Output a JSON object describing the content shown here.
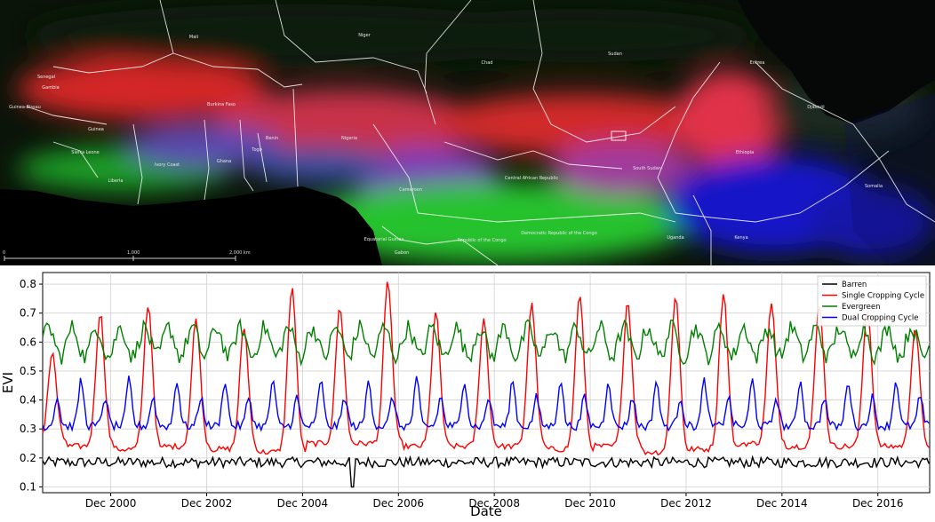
{
  "map": {
    "labels": [
      {
        "text": "Mali"
      },
      {
        "text": "Niger"
      },
      {
        "text": "Chad"
      },
      {
        "text": "Sudan"
      },
      {
        "text": "Senegal"
      },
      {
        "text": "Gambia"
      },
      {
        "text": "Guinea-Bissau"
      },
      {
        "text": "Guinea"
      },
      {
        "text": "Sierra Leone"
      },
      {
        "text": "Liberia"
      },
      {
        "text": "Ivory Coast"
      },
      {
        "text": "Ghana"
      },
      {
        "text": "Togo"
      },
      {
        "text": "Benin"
      },
      {
        "text": "Burkina Faso"
      },
      {
        "text": "Nigeria"
      },
      {
        "text": "Cameroon"
      },
      {
        "text": "Central African Republic"
      },
      {
        "text": "South Sudan"
      },
      {
        "text": "Ethiopia"
      },
      {
        "text": "Eritrea"
      },
      {
        "text": "Djibouti"
      },
      {
        "text": "Somalia"
      },
      {
        "text": "Uganda"
      },
      {
        "text": "Kenya"
      },
      {
        "text": "Equatorial Guinea"
      },
      {
        "text": "Gabon"
      },
      {
        "text": "Republic of the Congo"
      },
      {
        "text": "Democratic Republic of the Congo"
      }
    ],
    "scale": {
      "t0": "0",
      "t1": "1,000",
      "t2": "2,000 km"
    }
  },
  "chart_data": {
    "type": "line",
    "xlabel": "Date",
    "ylabel": "EVI",
    "ylim": [
      0.08,
      0.84
    ],
    "xlim": [
      1999.5,
      2018.0
    ],
    "yticks": [
      "0.1",
      "0.2",
      "0.3",
      "0.4",
      "0.5",
      "0.6",
      "0.7",
      "0.8"
    ],
    "xticks": [
      "Dec 2000",
      "Dec 2002",
      "Dec 2004",
      "Dec 2006",
      "Dec 2008",
      "Dec 2010",
      "Dec 2012",
      "Dec 2014",
      "Dec 2016"
    ],
    "xtick_values": [
      2000.92,
      2002.92,
      2004.92,
      2006.92,
      2008.92,
      2010.92,
      2012.92,
      2014.92,
      2016.92
    ],
    "grid": true,
    "legend_position": "top-right",
    "time_step_days": 16,
    "series": [
      {
        "name": "Barren",
        "color": "#000000",
        "base": 0.185,
        "amp": 0.005,
        "noise": 0.018
      },
      {
        "name": "Single Cropping Cycle",
        "color": "#ff0000",
        "peaks": [
          0.56,
          0.7,
          0.73,
          0.68,
          0.65,
          0.79,
          0.72,
          0.81,
          0.7,
          0.68,
          0.73,
          0.76,
          0.74,
          0.76,
          0.77,
          0.73,
          0.73,
          0.72,
          0.65
        ],
        "troughs": [
          0.26,
          0.24,
          0.23,
          0.24,
          0.23,
          0.22,
          0.25,
          0.25,
          0.24,
          0.24,
          0.24,
          0.23,
          0.24,
          0.22,
          0.23,
          0.25,
          0.24,
          0.24,
          0.24
        ]
      },
      {
        "name": "Evergreen",
        "color": "#008000",
        "base": 0.6,
        "amp": 0.05,
        "noise": 0.03
      },
      {
        "name": "Dual Cropping Cycle",
        "color": "#0000ff",
        "base": 0.38,
        "amp": 0.08,
        "noise": 0.02
      }
    ]
  }
}
